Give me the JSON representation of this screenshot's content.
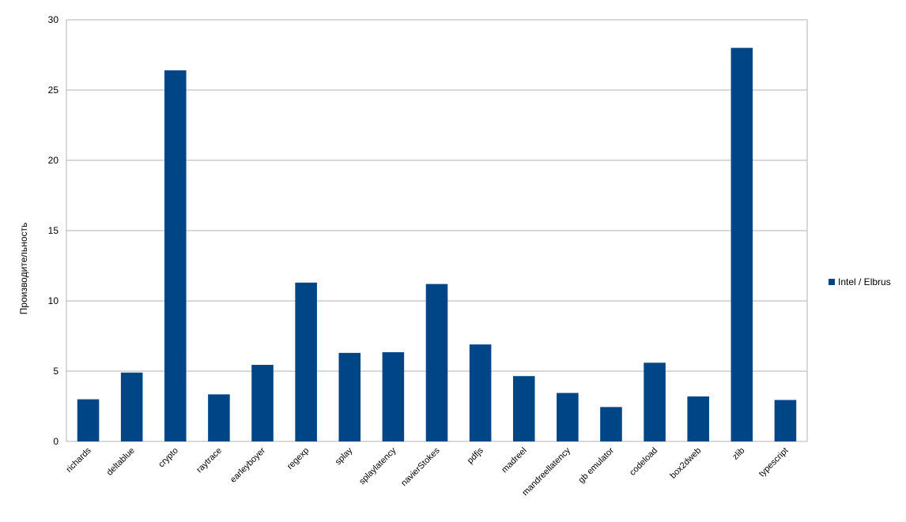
{
  "chart_data": {
    "type": "bar",
    "ylabel": "Производительность",
    "ylim": [
      0,
      30
    ],
    "yticks": [
      0,
      5,
      10,
      15,
      20,
      25,
      30
    ],
    "grid": true,
    "legend_position": "right",
    "categories": [
      "richards",
      "deltablue",
      "crypto",
      "raytrace",
      "earleyboyer",
      "regexp",
      "splay",
      "splaylatency",
      "navierStokes",
      "pdfjs",
      "madreel",
      "mandreellatency",
      "gb emulator",
      "codeload",
      "box2dweb",
      "zlib",
      "typescript"
    ],
    "series": [
      {
        "name": "Intel / Elbrus",
        "color": "#004586",
        "values": [
          3.0,
          4.9,
          26.4,
          3.35,
          5.45,
          11.3,
          6.3,
          6.35,
          11.2,
          6.9,
          4.65,
          3.45,
          2.45,
          5.6,
          3.2,
          28.0,
          2.95
        ]
      }
    ]
  }
}
